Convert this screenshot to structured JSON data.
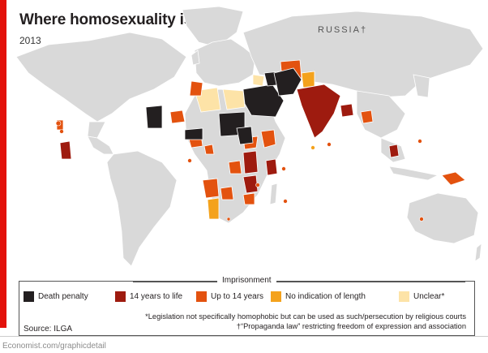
{
  "header": {
    "title": "Where homosexuality is illegal",
    "subtitle": "2013"
  },
  "map": {
    "russia_label": "RUSSIA†"
  },
  "colors": {
    "brand_red": "#e3120b",
    "death_penalty": "#231f20",
    "fourteen_to_life": "#9e1b0f",
    "up_to_fourteen": "#e3520f",
    "no_indication": "#f4a21c",
    "unclear": "#fde3a7",
    "land": "#d9d9d9",
    "ocean": "#ffffff"
  },
  "legend": {
    "heading": "Imprisonment",
    "items": [
      {
        "label": "Death penalty",
        "color_key": "death_penalty"
      },
      {
        "label": "14 years to life",
        "color_key": "fourteen_to_life"
      },
      {
        "label": "Up to 14 years",
        "color_key": "up_to_fourteen"
      },
      {
        "label": "No indication of length",
        "color_key": "no_indication"
      },
      {
        "label": "Unclear*",
        "color_key": "unclear"
      }
    ],
    "note_1": "*Legislation not specifically homophobic but can be used as such/persecution by religious courts",
    "note_2": "†“Propaganda law” restricting freedom of expression and association",
    "source": "Source: ILGA"
  },
  "footer": {
    "credit": "Economist.com/graphicdetail"
  }
}
